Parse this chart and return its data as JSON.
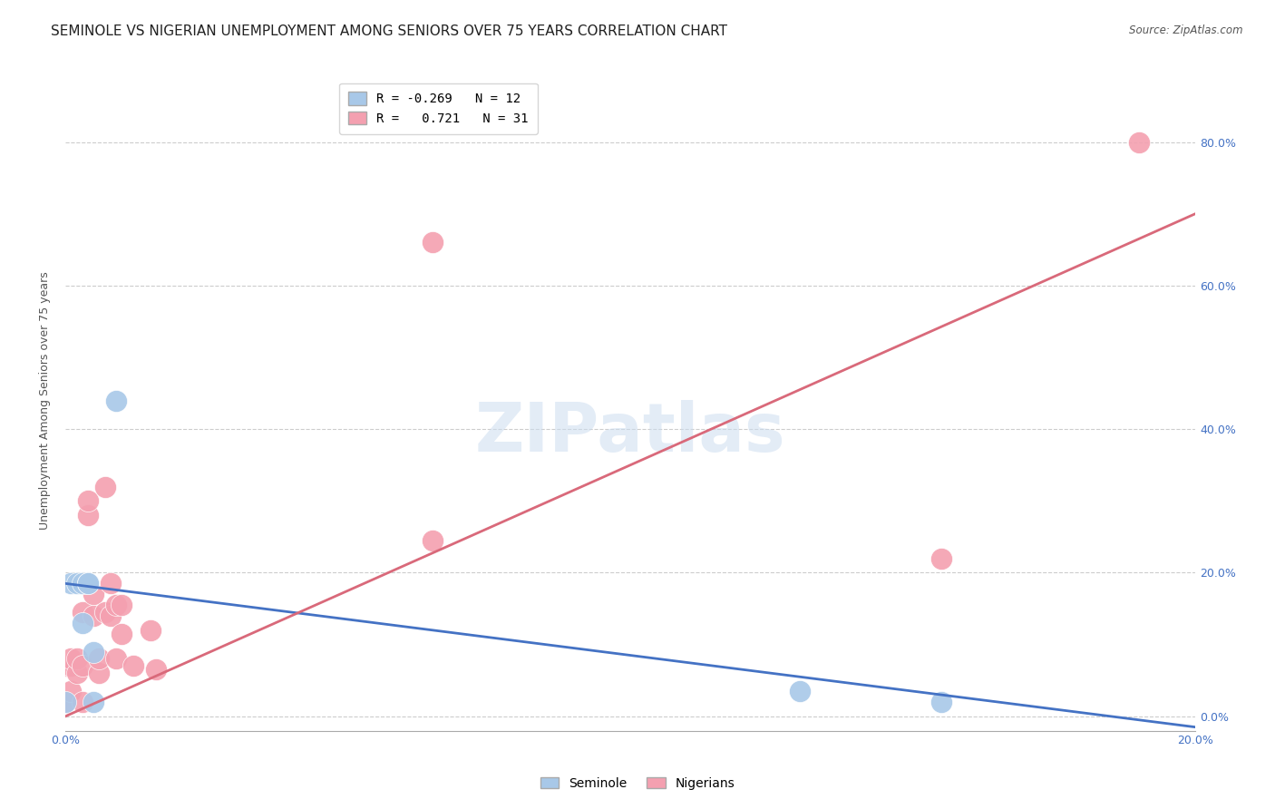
{
  "title": "SEMINOLE VS NIGERIAN UNEMPLOYMENT AMONG SENIORS OVER 75 YEARS CORRELATION CHART",
  "source": "Source: ZipAtlas.com",
  "ylabel": "Unemployment Among Seniors over 75 years",
  "xlim": [
    0.0,
    0.2
  ],
  "ylim": [
    -0.02,
    0.9
  ],
  "xticks": [
    0.0,
    0.04,
    0.08,
    0.12,
    0.16,
    0.2
  ],
  "xtick_labels": [
    "0.0%",
    "",
    "",
    "",
    "",
    "20.0%"
  ],
  "yticks": [
    0.0,
    0.2,
    0.4,
    0.6,
    0.8
  ],
  "ytick_labels_right": [
    "0.0%",
    "20.0%",
    "40.0%",
    "60.0%",
    "80.0%"
  ],
  "watermark": "ZIPatlas",
  "seminole_color": "#a8c8e8",
  "nigerian_color": "#f4a0b0",
  "seminole_line_color": "#4472c4",
  "nigerian_line_color": "#d9697a",
  "legend_r_seminole": "-0.269",
  "legend_n_seminole": "12",
  "legend_r_nigerian": "0.721",
  "legend_n_nigerian": "31",
  "seminole_x": [
    0.0,
    0.001,
    0.002,
    0.003,
    0.003,
    0.004,
    0.004,
    0.005,
    0.005,
    0.009,
    0.13,
    0.155
  ],
  "seminole_y": [
    0.02,
    0.185,
    0.185,
    0.13,
    0.185,
    0.185,
    0.185,
    0.02,
    0.09,
    0.44,
    0.035,
    0.02
  ],
  "nigerian_x": [
    0.0,
    0.0,
    0.001,
    0.001,
    0.001,
    0.002,
    0.002,
    0.003,
    0.003,
    0.003,
    0.004,
    0.004,
    0.005,
    0.005,
    0.006,
    0.006,
    0.007,
    0.007,
    0.008,
    0.008,
    0.009,
    0.009,
    0.01,
    0.01,
    0.012,
    0.015,
    0.016,
    0.065,
    0.065,
    0.155,
    0.19
  ],
  "nigerian_y": [
    0.02,
    0.07,
    0.035,
    0.07,
    0.08,
    0.06,
    0.08,
    0.02,
    0.07,
    0.145,
    0.28,
    0.3,
    0.14,
    0.17,
    0.06,
    0.08,
    0.32,
    0.145,
    0.14,
    0.185,
    0.08,
    0.155,
    0.115,
    0.155,
    0.07,
    0.12,
    0.065,
    0.245,
    0.66,
    0.22,
    0.8
  ],
  "background_color": "#ffffff",
  "grid_color": "#cccccc",
  "title_fontsize": 11,
  "axis_label_fontsize": 9,
  "tick_fontsize": 9,
  "legend_fontsize": 10,
  "sem_line_x0": 0.0,
  "sem_line_y0": 0.185,
  "sem_line_x1": 0.2,
  "sem_line_y1": -0.015,
  "nig_line_x0": 0.0,
  "nig_line_y0": 0.0,
  "nig_line_x1": 0.2,
  "nig_line_y1": 0.7
}
